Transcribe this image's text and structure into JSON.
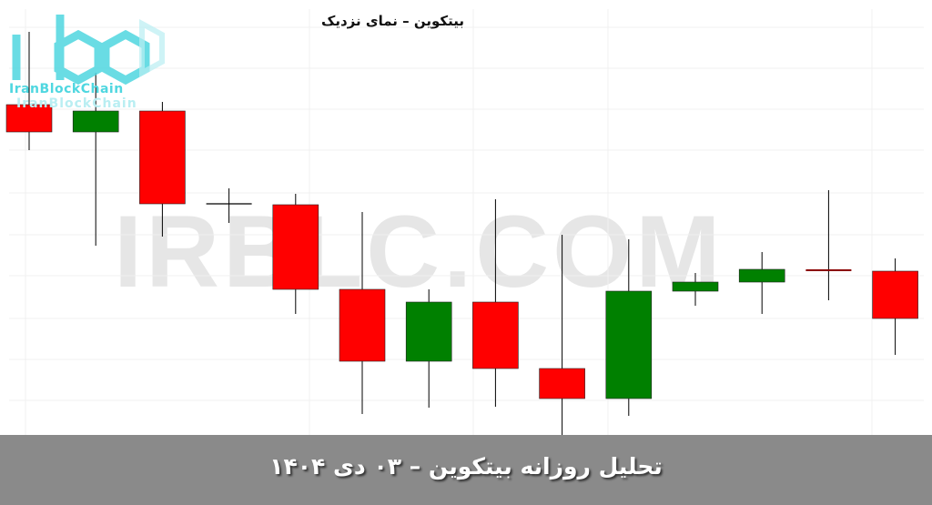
{
  "header": {
    "title": "بیتکوین – نمای نزدیک"
  },
  "watermark": "IRBLC.COM",
  "logo": {
    "text": "IranBlockChain"
  },
  "banner": {
    "text": "تحلیل روزانه بیتکوین – ۰۳ دی ۱۴۰۴"
  },
  "colors": {
    "bullish": "#008000",
    "bearish": "#ff0000",
    "doji_last": "#8b0000",
    "wick": "#000000",
    "banner": "#8a8a8a",
    "logo": "#4fd7e0"
  },
  "chart_data": {
    "type": "candlestick",
    "title": "بیتکوین – نمای نزدیک",
    "note_scale": "relative",
    "ylim": [
      0,
      100
    ],
    "grid": true,
    "candles": [
      {
        "o": 77,
        "h": 93,
        "l": 67,
        "c": 71
      },
      {
        "o": 71,
        "h": 84,
        "l": 46,
        "c": 75.6
      },
      {
        "o": 75.6,
        "h": 77.6,
        "l": 48,
        "c": 55.2
      },
      {
        "o": 55.2,
        "h": 58.6,
        "l": 51,
        "c": 55.2
      },
      {
        "o": 55,
        "h": 57.4,
        "l": 31,
        "c": 36.4
      },
      {
        "o": 36.4,
        "h": 53.4,
        "l": 9,
        "c": 20.6
      },
      {
        "o": 20.6,
        "h": 36.4,
        "l": 10.4,
        "c": 33.6
      },
      {
        "o": 33.6,
        "h": 56.2,
        "l": 10.6,
        "c": 19
      },
      {
        "o": 19,
        "h": 48.4,
        "l": 2.6,
        "c": 12.4
      },
      {
        "o": 12.4,
        "h": 47.4,
        "l": 8.6,
        "c": 36
      },
      {
        "o": 36,
        "h": 40,
        "l": 32.8,
        "c": 38
      },
      {
        "o": 38,
        "h": 44.6,
        "l": 31,
        "c": 40.8
      },
      {
        "o": 40.6,
        "h": 58.2,
        "l": 34,
        "c": 40.6
      },
      {
        "o": 40.4,
        "h": 43.2,
        "l": 22,
        "c": 30
      }
    ]
  }
}
